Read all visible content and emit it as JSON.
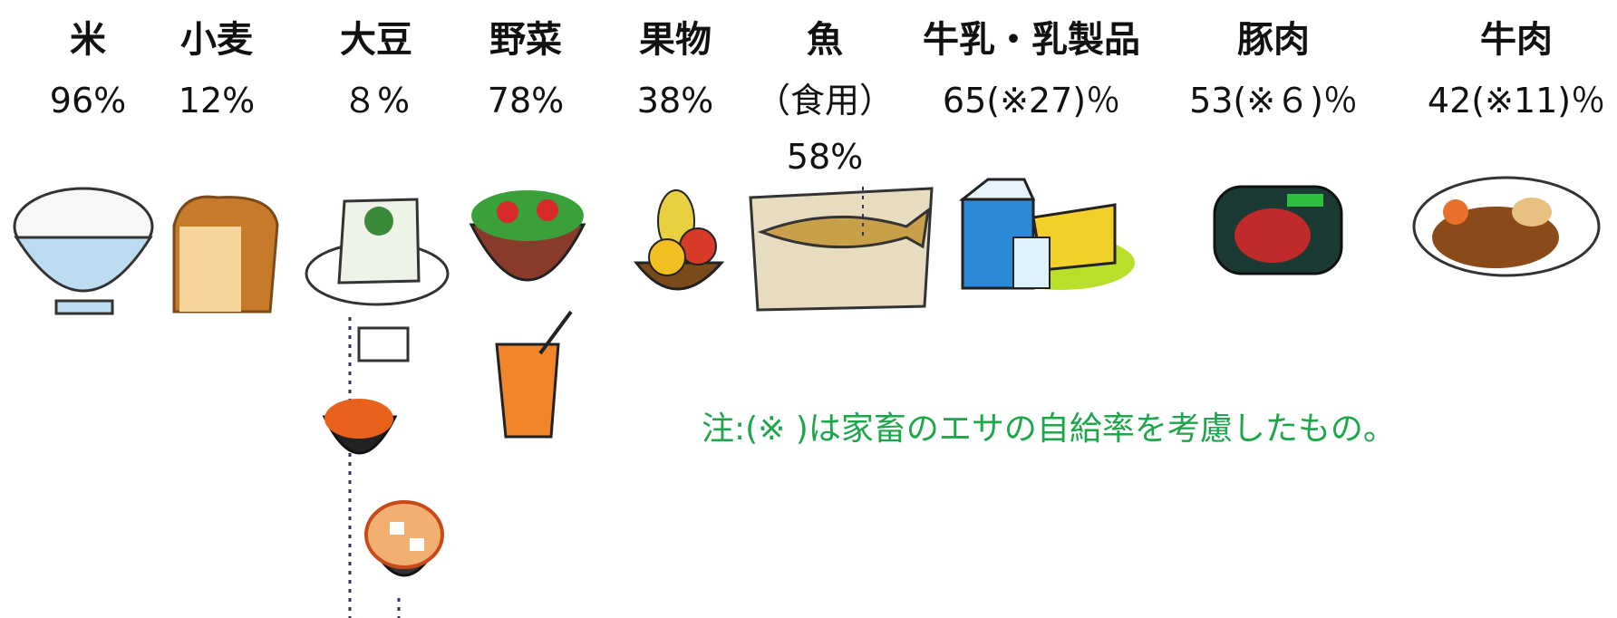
{
  "items": [
    {
      "name": "米",
      "rate": "96%"
    },
    {
      "name": "小麦",
      "rate": "12%"
    },
    {
      "name": "大豆",
      "rate": "８%"
    },
    {
      "name": "野菜",
      "rate": "78%"
    },
    {
      "name": "果物",
      "rate": "38%"
    },
    {
      "name": "魚",
      "qualifier": "（食用）",
      "rate": "58%"
    },
    {
      "name": "牛乳・乳製品",
      "rate": "65(※27)％"
    },
    {
      "name": "豚肉",
      "rate": "53(※６)％"
    },
    {
      "name": "牛肉",
      "rate": "42(※11)％"
    }
  ],
  "note": "注:(※ )は家畜のエサの自給率を考慮したもの。"
}
